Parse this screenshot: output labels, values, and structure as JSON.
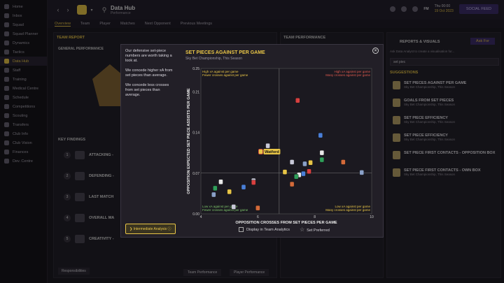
{
  "sidebar": {
    "items": [
      {
        "label": "Home",
        "active": false
      },
      {
        "label": "Inbox",
        "active": false
      },
      {
        "label": "Squad",
        "active": false
      },
      {
        "label": "Squad Planner",
        "active": false
      },
      {
        "label": "Dynamics",
        "active": false
      },
      {
        "label": "Tactics",
        "active": false
      },
      {
        "label": "Data Hub",
        "active": true
      },
      {
        "label": "Staff",
        "active": false
      },
      {
        "label": "Training",
        "active": false
      },
      {
        "label": "Medical Centre",
        "active": false
      },
      {
        "label": "Schedule",
        "active": false
      },
      {
        "label": "Competitions",
        "active": false
      },
      {
        "label": "Scouting",
        "active": false
      },
      {
        "label": "Transfers",
        "active": false
      },
      {
        "label": "Club Info",
        "active": false
      },
      {
        "label": "Club Vision",
        "active": false
      },
      {
        "label": "Finances",
        "active": false
      },
      {
        "label": "Dev. Centre",
        "active": false
      }
    ]
  },
  "header": {
    "title": "Data Hub",
    "subtitle": "Performance",
    "day": "Thu 00:00",
    "date": "19 Oct 2023",
    "social_btn": "SOCIAL FEED"
  },
  "tabs": [
    "Overview",
    "Team",
    "Player",
    "Matches",
    "Next Opponent",
    "Previous Meetings"
  ],
  "background": {
    "team_report": "TEAM REPORT",
    "general_performance": "GENERAL PERFORMANCE",
    "key_findings": "KEY FINDINGS",
    "team_performance": "TEAM PERFORMANCE",
    "findings": [
      {
        "n": "1",
        "title": "ATTACKING -"
      },
      {
        "n": "2",
        "title": "DEFENDING -"
      },
      {
        "n": "3",
        "title": "LAST MATCH"
      },
      {
        "n": "4",
        "title": "OVERALL MA"
      },
      {
        "n": "5",
        "title": "CREATIVITY -"
      }
    ],
    "responsibilities": "Responsibilities",
    "team_performance_btn": "Team Performance",
    "player_performance_btn": "Player Performance"
  },
  "reports_panel": {
    "title": "REPORTS & VISUALS",
    "ask_for": "Ask For",
    "hint": "Ask Data Analyst to create a visualisation for...",
    "search_value": "set piec",
    "suggestions_label": "SUGGESTIONS",
    "items": [
      {
        "title": "SET PIECES AGAINST PER GAME",
        "sub": "Sky Bet Championship, This Season"
      },
      {
        "title": "GOALS FROM SET PIECES",
        "sub": "Sky Bet Championship, This Season"
      },
      {
        "title": "SET PIECE EFFICIENCY",
        "sub": "Sky Bet Championship, This Season"
      },
      {
        "title": "SET PIECE EFFICIENCY",
        "sub": "Sky Bet Championship, This Season"
      },
      {
        "title": "SET PIECE FIRST CONTACTS - OPPOSITION BOX",
        "sub": ""
      },
      {
        "title": "SET PIECE FIRST CONTACTS - OWN BOX",
        "sub": "Sky Bet Championship, This Season"
      }
    ]
  },
  "modal": {
    "notes": [
      "Our defensive set-piece numbers are worth taking a look at.",
      "We concede higher xA from set pieces than average.",
      "We concede less crosses from set pieces than average."
    ],
    "intermediate_btn": "Intermediate Analysis",
    "display_in_team_analytics": "Display in Team Analytics",
    "set_preferred": "Set Preferred",
    "colors": {
      "accent": "#e8c547",
      "high_q": "#e05a4f",
      "low_q": "#7cc46a"
    }
  },
  "chart_data": {
    "type": "scatter",
    "title": "SET PIECES AGAINST PER GAME",
    "subtitle": "Sky Bet Championship, This Season",
    "xlabel": "OPPOSITION CROSSES FROM SET PIECES PER GAME",
    "ylabel": "OPPOSITION EXPECTED SET PIECE ASSISTS PER GAME",
    "xlim": [
      4,
      10
    ],
    "ylim": [
      0.0,
      0.25
    ],
    "xticks": [
      "4",
      "6",
      "8",
      "10"
    ],
    "yticks": [
      "0.00",
      "0.07",
      "0.14",
      "0.21",
      "0.25"
    ],
    "avg_x": 6.75,
    "avg_y": 0.07,
    "quadrant_labels": {
      "top_left": [
        "High xA against per game",
        "Fewer crosses against per game"
      ],
      "top_right": [
        "High xA against per game",
        "Many crosses against per game"
      ],
      "bottom_left": [
        "Low xA against per game",
        "Fewer crosses against per game"
      ],
      "bottom_right": [
        "Low xA against per game",
        "Many crosses against per game"
      ]
    },
    "highlight": {
      "name": "Watford",
      "x": 6.1,
      "y": 0.107
    },
    "points": [
      {
        "x": 6.35,
        "y": 0.117
      },
      {
        "x": 7.4,
        "y": 0.195
      },
      {
        "x": 8.2,
        "y": 0.135
      },
      {
        "x": 8.25,
        "y": 0.105
      },
      {
        "x": 8.25,
        "y": 0.093
      },
      {
        "x": 7.85,
        "y": 0.088
      },
      {
        "x": 7.65,
        "y": 0.086
      },
      {
        "x": 9.0,
        "y": 0.089
      },
      {
        "x": 7.2,
        "y": 0.089
      },
      {
        "x": 7.8,
        "y": 0.073
      },
      {
        "x": 7.6,
        "y": 0.069
      },
      {
        "x": 7.45,
        "y": 0.067
      },
      {
        "x": 7.35,
        "y": 0.064
      },
      {
        "x": 6.95,
        "y": 0.072
      },
      {
        "x": 9.65,
        "y": 0.071
      },
      {
        "x": 7.2,
        "y": 0.051
      },
      {
        "x": 5.85,
        "y": 0.057
      },
      {
        "x": 5.85,
        "y": 0.054
      },
      {
        "x": 5.5,
        "y": 0.046
      },
      {
        "x": 4.7,
        "y": 0.055
      },
      {
        "x": 4.5,
        "y": 0.044
      },
      {
        "x": 5.0,
        "y": 0.038
      },
      {
        "x": 4.45,
        "y": 0.033
      },
      {
        "x": 6.0,
        "y": 0.01
      },
      {
        "x": 5.15,
        "y": 0.012
      }
    ]
  }
}
